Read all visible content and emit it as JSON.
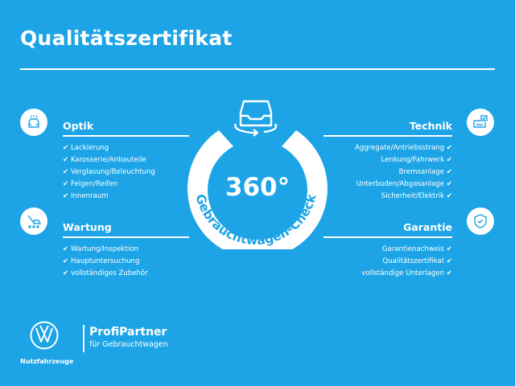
{
  "title": "Qualitätszertifikat",
  "check_mark": "✔",
  "center": {
    "big": "360°",
    "arc_text": "Gebrauchtwagen-Check",
    "icon": "car-rotate-icon"
  },
  "sections": {
    "optik": {
      "heading": "Optik",
      "icon": "car-lights-icon",
      "items": [
        "Lackierung",
        "Karosserie/Anbauteile",
        "Verglasung/Beleuchtung",
        "Felgen/Reifen",
        "Innenraum"
      ]
    },
    "wartung": {
      "heading": "Wartung",
      "icon": "wrench-car-icon",
      "items": [
        "Wartung/Inspektion",
        "Hauptuntersuchung",
        "vollständiges Zubehör"
      ]
    },
    "technik": {
      "heading": "Technik",
      "icon": "engine-check-icon",
      "items": [
        "Aggregate/Antriebsstrang",
        "Lenkung/Fahrwerk",
        "Bremsanlage",
        "Unterboden/Abgasanlage",
        "Sicherheit/Elektrik"
      ]
    },
    "garantie": {
      "heading": "Garantie",
      "icon": "shield-check-icon",
      "items": [
        "Garantienachweis",
        "Qualitätszertifikat",
        "vollständige Unterlagen"
      ]
    }
  },
  "footer": {
    "brand": "Nutzfahrzeuge",
    "partner": "ProfiPartner",
    "partner_sub": "für Gebrauchtwagen",
    "logo": "vw-logo"
  },
  "colors": {
    "background": "#1ca4e6",
    "foreground": "#ffffff"
  }
}
